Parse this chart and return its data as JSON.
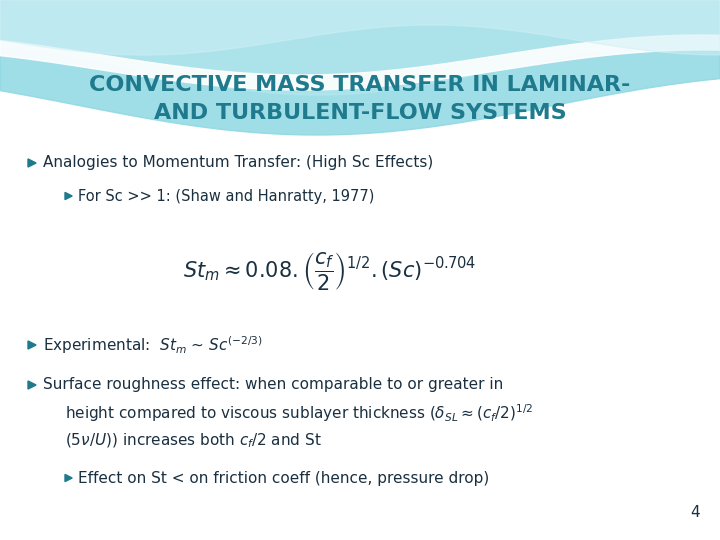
{
  "title_line1": "CONVECTIVE MASS TRANSFER IN LAMINAR-",
  "title_line2": "AND TURBULENT-FLOW SYSTEMS",
  "title_color": "#1E7A8C",
  "bg_color": "#FFFFFF",
  "bullet_color": "#1E7A8C",
  "text_color": "#1A3040",
  "page_number": "4",
  "wave1_color": "#7BCFDA",
  "wave2_color": "#A8E0E8",
  "wave3_color": "#C5ECF0"
}
